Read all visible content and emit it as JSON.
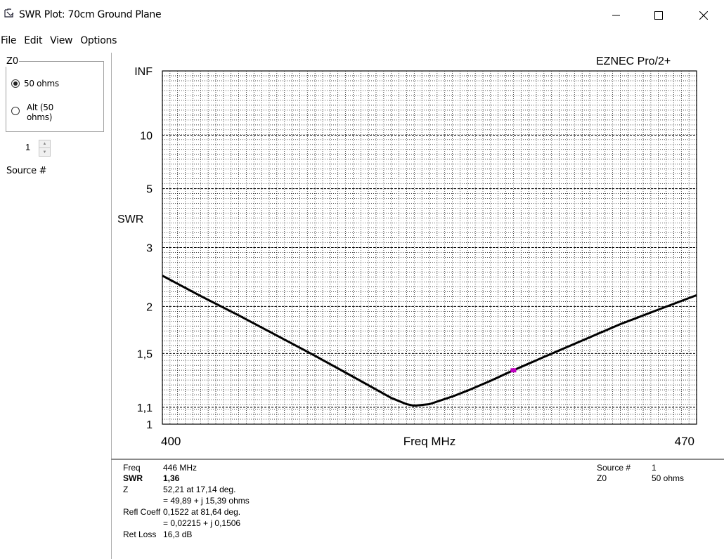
{
  "window": {
    "title": "SWR Plot: 70cm Ground Plane",
    "icon": "eznec-app-icon",
    "controls": [
      "minimize-icon",
      "maximize-icon",
      "close-icon"
    ]
  },
  "menu": {
    "file": "File",
    "edit": "Edit",
    "view": "View",
    "options": "Options"
  },
  "z0_panel": {
    "legend": "Z0",
    "option_50": "50 ohms",
    "option_alt_line1": "Alt (50",
    "option_alt_line2": "ohms)",
    "selected": "50 ohms"
  },
  "source": {
    "value": "1",
    "label": "Source #"
  },
  "branding": "EZNEC Pro/2+",
  "chart_data": {
    "type": "line",
    "xlabel": "Freq MHz",
    "ylabel": "SWR",
    "xlim": [
      400,
      470
    ],
    "y_scale": "reflection-coefficient",
    "y_tick_labels": [
      "INF",
      "10",
      "5",
      "3",
      "2",
      "1,5",
      "1,1",
      "1"
    ],
    "x_tick_labels": [
      "400",
      "470"
    ],
    "grid": true,
    "series": [
      {
        "x": [
          400,
          405,
          410,
          415,
          420,
          425,
          430,
          432,
          433,
          435,
          438,
          440,
          443,
          446,
          450,
          455,
          460,
          465,
          470
        ],
        "y": [
          2.45,
          2.14,
          1.89,
          1.67,
          1.48,
          1.31,
          1.16,
          1.12,
          1.11,
          1.12,
          1.17,
          1.21,
          1.28,
          1.36,
          1.47,
          1.62,
          1.79,
          1.96,
          2.15
        ]
      }
    ],
    "marker": {
      "x": 446,
      "y": 1.36,
      "color": "#c000c0"
    },
    "line_color": "#000000",
    "grid_color": "#000000"
  },
  "readout": {
    "freq_label": "Freq",
    "freq_value": "446 MHz",
    "swr_label": "SWR",
    "swr_value": "1,36",
    "z_label": "Z",
    "z_value1": "52,21 at 17,14 deg.",
    "z_value2": "= 49,89 + j 15,39 ohms",
    "refl_label": "Refl Coeff",
    "refl_value1": "0,1522 at 81,64 deg.",
    "refl_value2": "= 0,02215 + j 0,1506",
    "retloss_label": "Ret Loss",
    "retloss_value": "16,3 dB",
    "source_label": "Source #",
    "source_value": "1",
    "z0_label": "Z0",
    "z0_value": "50 ohms"
  }
}
